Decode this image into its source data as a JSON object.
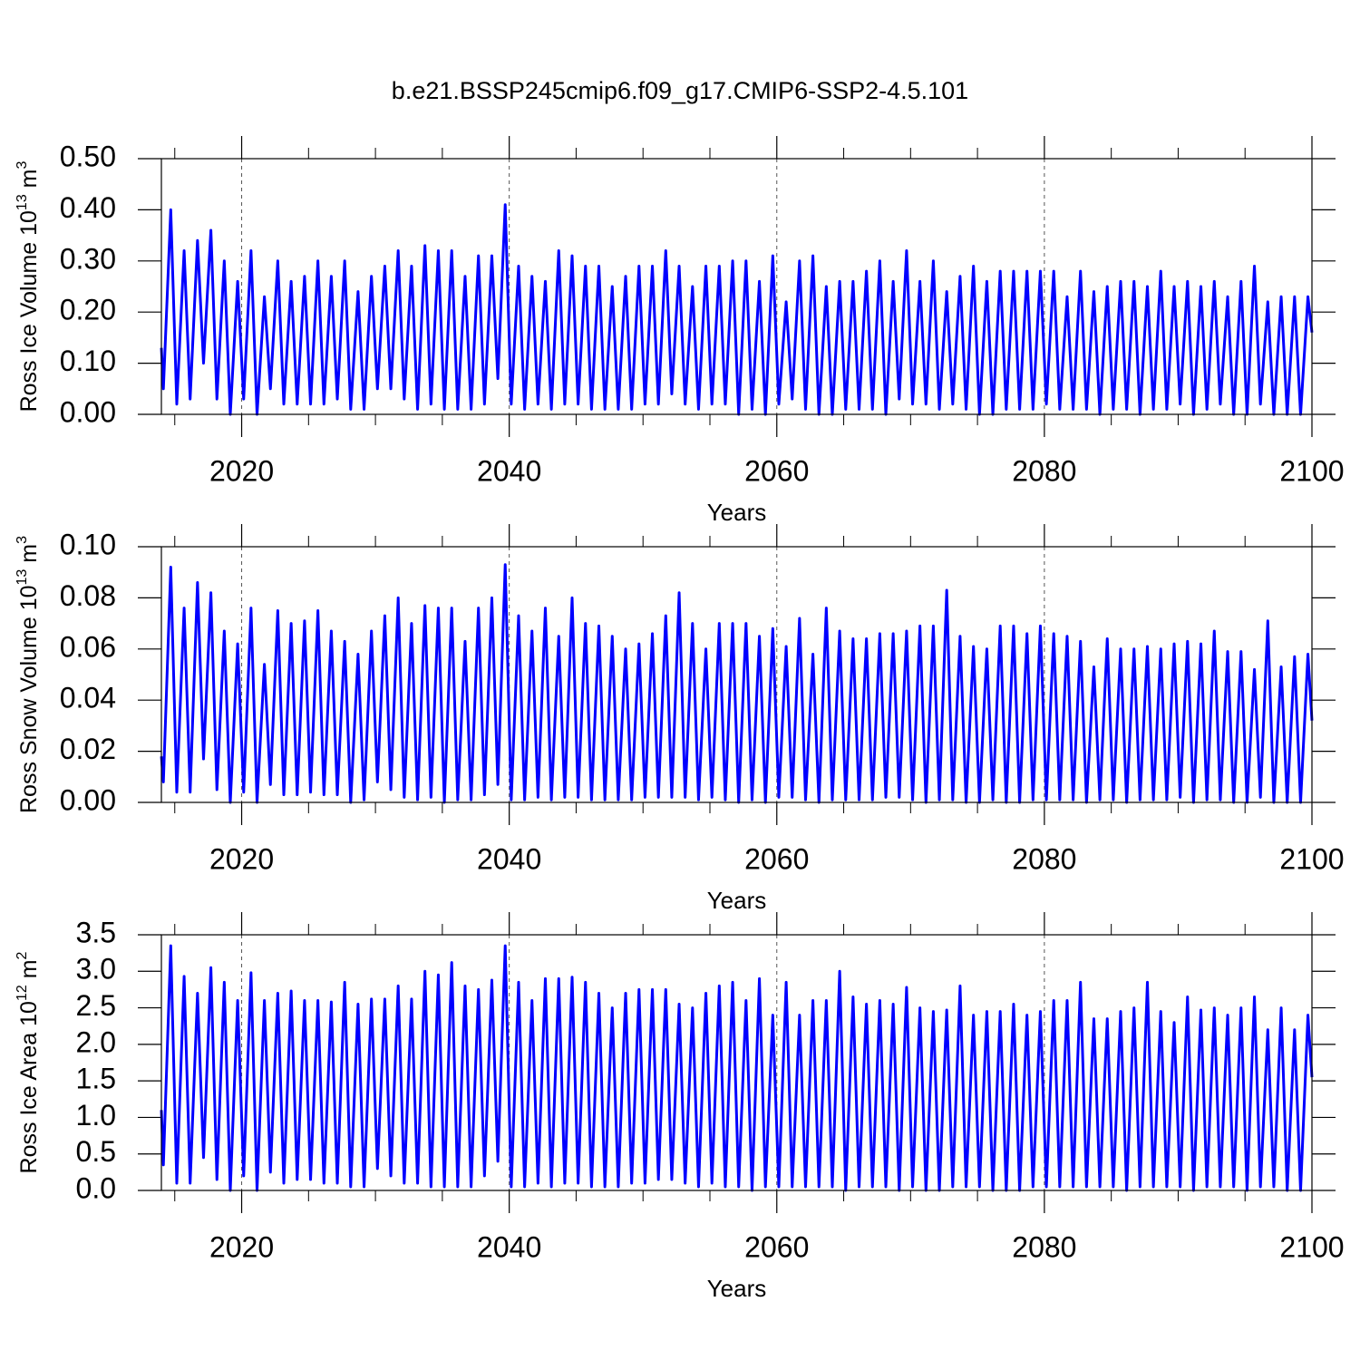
{
  "chart_data": {
    "type": "line",
    "title": "b.e21.BSSP245cmip6.f09_g17.CMIP6-SSP2-4.5.101",
    "xlabel": "Years",
    "xlim": [
      2014,
      2100
    ],
    "xticks": [
      2020,
      2040,
      2060,
      2080,
      2100
    ],
    "xminorticks": [
      2015,
      2025,
      2030,
      2035,
      2045,
      2050,
      2055,
      2065,
      2070,
      2075,
      2085,
      2090,
      2095
    ],
    "grid": true,
    "color": "#0000ff",
    "x": [
      2014.0,
      2014.15,
      2014.7,
      2015.15,
      2015.7,
      2016.15,
      2016.7,
      2017.15,
      2017.7,
      2018.15,
      2018.7,
      2019.15,
      2019.7,
      2020.15,
      2020.7,
      2021.15,
      2021.7,
      2022.15,
      2022.7,
      2023.15,
      2023.7,
      2024.15,
      2024.7,
      2025.15,
      2025.7,
      2026.15,
      2026.7,
      2027.15,
      2027.7,
      2028.15,
      2028.7,
      2029.15,
      2029.7,
      2030.15,
      2030.7,
      2031.15,
      2031.7,
      2032.15,
      2032.7,
      2033.15,
      2033.7,
      2034.15,
      2034.7,
      2035.15,
      2035.7,
      2036.15,
      2036.7,
      2037.15,
      2037.7,
      2038.15,
      2038.7,
      2039.15,
      2039.7,
      2040.15,
      2040.7,
      2041.15,
      2041.7,
      2042.15,
      2042.7,
      2043.15,
      2043.7,
      2044.15,
      2044.7,
      2045.15,
      2045.7,
      2046.15,
      2046.7,
      2047.15,
      2047.7,
      2048.15,
      2048.7,
      2049.15,
      2049.7,
      2050.15,
      2050.7,
      2051.15,
      2051.7,
      2052.15,
      2052.7,
      2053.15,
      2053.7,
      2054.15,
      2054.7,
      2055.15,
      2055.7,
      2056.15,
      2056.7,
      2057.15,
      2057.7,
      2058.15,
      2058.7,
      2059.15,
      2059.7,
      2060.15,
      2060.7,
      2061.15,
      2061.7,
      2062.15,
      2062.7,
      2063.15,
      2063.7,
      2064.15,
      2064.7,
      2065.15,
      2065.7,
      2066.15,
      2066.7,
      2067.15,
      2067.7,
      2068.15,
      2068.7,
      2069.15,
      2069.7,
      2070.15,
      2070.7,
      2071.15,
      2071.7,
      2072.15,
      2072.7,
      2073.15,
      2073.7,
      2074.15,
      2074.7,
      2075.15,
      2075.7,
      2076.15,
      2076.7,
      2077.15,
      2077.7,
      2078.15,
      2078.7,
      2079.15,
      2079.7,
      2080.15,
      2080.7,
      2081.15,
      2081.7,
      2082.15,
      2082.7,
      2083.15,
      2083.7,
      2084.15,
      2084.7,
      2085.15,
      2085.7,
      2086.15,
      2086.7,
      2087.15,
      2087.7,
      2088.15,
      2088.7,
      2089.15,
      2089.7,
      2090.15,
      2090.7,
      2091.15,
      2091.7,
      2092.15,
      2092.7,
      2093.15,
      2093.7,
      2094.15,
      2094.7,
      2095.15,
      2095.7,
      2096.15,
      2096.7,
      2097.15,
      2097.7,
      2098.15,
      2098.7,
      2099.15,
      2099.7,
      2100.0
    ],
    "panels": [
      {
        "ylabel": [
          "Ross Ice Volume 10",
          "13",
          " m",
          "3"
        ],
        "ylim": [
          0,
          0.5
        ],
        "yticks": [
          {
            "value": 0,
            "label": "0.00"
          },
          {
            "value": 0.1,
            "label": "0.10"
          },
          {
            "value": 0.2,
            "label": "0.20"
          },
          {
            "value": 0.3,
            "label": "0.30"
          },
          {
            "value": 0.4,
            "label": "0.40"
          },
          {
            "value": 0.5,
            "label": "0.50"
          }
        ],
        "values": [
          0.13,
          0.05,
          0.4,
          0.02,
          0.32,
          0.03,
          0.34,
          0.1,
          0.36,
          0.03,
          0.3,
          0.0,
          0.26,
          0.03,
          0.32,
          0.0,
          0.23,
          0.05,
          0.3,
          0.02,
          0.26,
          0.02,
          0.27,
          0.02,
          0.3,
          0.02,
          0.27,
          0.03,
          0.3,
          0.01,
          0.24,
          0.01,
          0.27,
          0.05,
          0.29,
          0.05,
          0.32,
          0.03,
          0.29,
          0.01,
          0.33,
          0.02,
          0.32,
          0.01,
          0.32,
          0.01,
          0.27,
          0.01,
          0.31,
          0.02,
          0.31,
          0.07,
          0.41,
          0.02,
          0.29,
          0.01,
          0.27,
          0.02,
          0.26,
          0.01,
          0.32,
          0.02,
          0.31,
          0.02,
          0.29,
          0.01,
          0.29,
          0.01,
          0.25,
          0.01,
          0.27,
          0.01,
          0.29,
          0.02,
          0.29,
          0.02,
          0.32,
          0.04,
          0.29,
          0.02,
          0.25,
          0.01,
          0.29,
          0.02,
          0.29,
          0.02,
          0.3,
          0.0,
          0.3,
          0.01,
          0.26,
          0.0,
          0.31,
          0.02,
          0.22,
          0.03,
          0.3,
          0.01,
          0.31,
          0.0,
          0.25,
          0.0,
          0.26,
          0.01,
          0.26,
          0.01,
          0.28,
          0.01,
          0.3,
          0.0,
          0.26,
          0.03,
          0.32,
          0.02,
          0.26,
          0.02,
          0.3,
          0.01,
          0.24,
          0.02,
          0.27,
          0.01,
          0.29,
          0.0,
          0.26,
          0.0,
          0.28,
          0.01,
          0.28,
          0.01,
          0.28,
          0.01,
          0.28,
          0.02,
          0.28,
          0.01,
          0.23,
          0.01,
          0.28,
          0.01,
          0.24,
          0.0,
          0.25,
          0.01,
          0.26,
          0.01,
          0.26,
          0.0,
          0.25,
          0.01,
          0.28,
          0.01,
          0.25,
          0.02,
          0.26,
          0.0,
          0.25,
          0.01,
          0.26,
          0.02,
          0.23,
          0.0,
          0.26,
          0.0,
          0.29,
          0.02,
          0.22,
          0.0,
          0.23,
          0.0,
          0.23,
          0.0,
          0.23,
          0.16
        ]
      },
      {
        "ylabel": [
          "Ross Snow Volume 10",
          "13",
          " m",
          "3"
        ],
        "ylim": [
          0,
          0.1
        ],
        "yticks": [
          {
            "value": 0,
            "label": "0.00"
          },
          0.02,
          0.04,
          0.06,
          0.08,
          {
            "value": 0.1,
            "label": "0.10"
          }
        ],
        "values": [
          0.018,
          0.008,
          0.092,
          0.004,
          0.076,
          0.004,
          0.086,
          0.017,
          0.082,
          0.005,
          0.067,
          0.0,
          0.062,
          0.004,
          0.076,
          0.0,
          0.054,
          0.007,
          0.075,
          0.003,
          0.07,
          0.003,
          0.071,
          0.004,
          0.075,
          0.003,
          0.067,
          0.003,
          0.063,
          0.0,
          0.058,
          0.001,
          0.067,
          0.008,
          0.073,
          0.005,
          0.08,
          0.002,
          0.07,
          0.001,
          0.077,
          0.002,
          0.076,
          0.0,
          0.076,
          0.001,
          0.063,
          0.001,
          0.076,
          0.003,
          0.08,
          0.007,
          0.093,
          0.001,
          0.073,
          0.001,
          0.067,
          0.002,
          0.076,
          0.001,
          0.065,
          0.002,
          0.08,
          0.002,
          0.07,
          0.001,
          0.069,
          0.001,
          0.065,
          0.001,
          0.06,
          0.001,
          0.062,
          0.002,
          0.066,
          0.002,
          0.073,
          0.002,
          0.082,
          0.002,
          0.07,
          0.001,
          0.06,
          0.002,
          0.07,
          0.001,
          0.07,
          0.0,
          0.07,
          0.001,
          0.065,
          0.0,
          0.068,
          0.002,
          0.061,
          0.002,
          0.072,
          0.001,
          0.058,
          0.0,
          0.076,
          0.001,
          0.067,
          0.001,
          0.064,
          0.001,
          0.064,
          0.001,
          0.066,
          0.002,
          0.066,
          0.002,
          0.067,
          0.001,
          0.069,
          0.0,
          0.069,
          0.001,
          0.083,
          0.001,
          0.065,
          0.0,
          0.061,
          0.0,
          0.06,
          0.001,
          0.069,
          0.0,
          0.069,
          0.0,
          0.066,
          0.001,
          0.069,
          0.001,
          0.066,
          0.001,
          0.065,
          0.001,
          0.063,
          0.0,
          0.053,
          0.001,
          0.064,
          0.001,
          0.06,
          0.0,
          0.06,
          0.001,
          0.061,
          0.001,
          0.06,
          0.001,
          0.062,
          0.002,
          0.063,
          0.0,
          0.062,
          0.001,
          0.067,
          0.001,
          0.059,
          0.0,
          0.059,
          0.0,
          0.052,
          0.002,
          0.071,
          0.0,
          0.053,
          0.0,
          0.057,
          0.0,
          0.058,
          0.032
        ]
      },
      {
        "ylabel": [
          "Ross Ice Area 10",
          "12",
          " m",
          "2"
        ],
        "ylim": [
          0,
          3.5
        ],
        "yticks": [
          {
            "value": 0,
            "label": "0.0"
          },
          0.5,
          {
            "value": 1,
            "label": "1.0"
          },
          1.5,
          {
            "value": 2,
            "label": "2.0"
          },
          2.5,
          {
            "value": 3,
            "label": "3.0"
          },
          3.5
        ],
        "values": [
          1.1,
          0.35,
          3.35,
          0.1,
          2.93,
          0.1,
          2.7,
          0.45,
          3.05,
          0.15,
          2.85,
          0.0,
          2.6,
          0.2,
          2.98,
          0.0,
          2.6,
          0.25,
          2.7,
          0.1,
          2.73,
          0.15,
          2.6,
          0.15,
          2.6,
          0.1,
          2.58,
          0.1,
          2.85,
          0.05,
          2.55,
          0.05,
          2.62,
          0.3,
          2.62,
          0.2,
          2.8,
          0.1,
          2.62,
          0.1,
          3.0,
          0.05,
          2.95,
          0.05,
          3.12,
          0.05,
          2.8,
          0.05,
          2.75,
          0.2,
          2.88,
          0.4,
          3.35,
          0.05,
          2.85,
          0.05,
          2.6,
          0.1,
          2.9,
          0.05,
          2.9,
          0.1,
          2.92,
          0.1,
          2.85,
          0.05,
          2.7,
          0.05,
          2.5,
          0.05,
          2.7,
          0.1,
          2.75,
          0.1,
          2.75,
          0.15,
          2.75,
          0.15,
          2.55,
          0.1,
          2.5,
          0.05,
          2.7,
          0.1,
          2.8,
          0.05,
          2.85,
          0.05,
          2.6,
          0.0,
          2.9,
          0.05,
          2.4,
          0.05,
          2.85,
          0.05,
          2.4,
          0.05,
          2.6,
          0.05,
          2.6,
          0.05,
          3.0,
          0.0,
          2.65,
          0.05,
          2.55,
          0.05,
          2.6,
          0.05,
          2.55,
          0.0,
          2.78,
          0.05,
          2.5,
          0.0,
          2.45,
          0.0,
          2.47,
          0.05,
          2.8,
          0.05,
          2.4,
          0.05,
          2.45,
          0.0,
          2.45,
          0.0,
          2.55,
          0.0,
          2.4,
          0.05,
          2.45,
          0.05,
          2.6,
          0.05,
          2.6,
          0.05,
          2.85,
          0.05,
          2.35,
          0.05,
          2.35,
          0.05,
          2.45,
          0.0,
          2.5,
          0.05,
          2.85,
          0.05,
          2.45,
          0.05,
          2.3,
          0.05,
          2.65,
          0.0,
          2.47,
          0.05,
          2.5,
          0.05,
          2.4,
          0.05,
          2.5,
          0.0,
          2.65,
          0.05,
          2.2,
          0.05,
          2.5,
          0.0,
          2.2,
          0.0,
          2.4,
          1.55
        ]
      }
    ]
  }
}
